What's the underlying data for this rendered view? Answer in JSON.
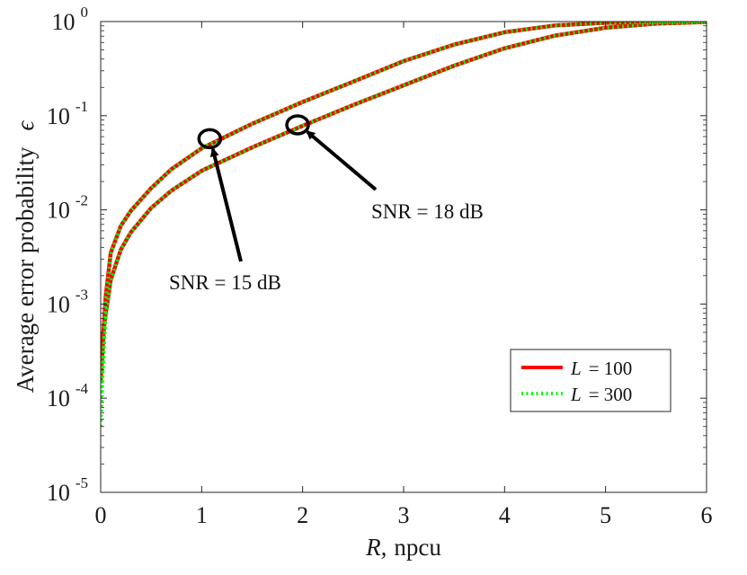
{
  "chart_data": {
    "type": "line",
    "xlabel_var": "R,",
    "xlabel_unit": "npcu",
    "ylabel": "Average error probability",
    "ylabel_symbol": "ϵ",
    "xlim": [
      0,
      6
    ],
    "ylim": [
      1e-05,
      1
    ],
    "yscale": "log",
    "x_ticks": [
      "0",
      "1",
      "2",
      "3",
      "4",
      "5",
      "6"
    ],
    "y_ticks": [
      {
        "base": "10",
        "exp": "0"
      },
      {
        "base": "10",
        "exp": "-1"
      },
      {
        "base": "10",
        "exp": "-2"
      },
      {
        "base": "10",
        "exp": "-3"
      },
      {
        "base": "10",
        "exp": "-4"
      },
      {
        "base": "10",
        "exp": "-5"
      }
    ],
    "grid": false,
    "legend_position": "bottom-right",
    "colors": {
      "L100": "#ff0000",
      "L300": "#00ff00",
      "annotation": "#000000"
    },
    "legend": [
      {
        "var": "L",
        "text": "= 100",
        "style": "solid"
      },
      {
        "var": "L",
        "text": "= 300",
        "style": "dotted"
      }
    ],
    "series": [
      {
        "group": "SNR = 15 dB",
        "legend_index": 0,
        "x": [
          0,
          0.05,
          0.1,
          0.2,
          0.3,
          0.5,
          0.7,
          1.0,
          1.5,
          2.0,
          2.5,
          3.0,
          3.5,
          4.0,
          4.5,
          5.0,
          5.5,
          6.0
        ],
        "y": [
          0.00015,
          0.0012,
          0.0035,
          0.0068,
          0.0098,
          0.017,
          0.027,
          0.045,
          0.082,
          0.14,
          0.23,
          0.38,
          0.57,
          0.77,
          0.91,
          0.97,
          0.99,
          1.0
        ]
      },
      {
        "group": "SNR = 15 dB",
        "legend_index": 1,
        "x": [
          0,
          0.05,
          0.1,
          0.2,
          0.3,
          0.5,
          0.7,
          1.0,
          1.5,
          2.0,
          2.5,
          3.0,
          3.5,
          4.0,
          4.5,
          5.0,
          5.5,
          6.0
        ],
        "y": [
          5e-05,
          0.0011,
          0.0034,
          0.0068,
          0.0098,
          0.017,
          0.027,
          0.045,
          0.082,
          0.14,
          0.23,
          0.38,
          0.57,
          0.77,
          0.91,
          0.97,
          0.99,
          1.0
        ]
      },
      {
        "group": "SNR = 18 dB",
        "legend_index": 0,
        "x": [
          0,
          0.05,
          0.1,
          0.2,
          0.3,
          0.5,
          0.7,
          1.0,
          1.5,
          2.0,
          2.5,
          3.0,
          3.5,
          4.0,
          4.5,
          5.0,
          5.5,
          6.0
        ],
        "y": [
          0.0003,
          0.0008,
          0.0018,
          0.0038,
          0.0058,
          0.0105,
          0.016,
          0.026,
          0.046,
          0.078,
          0.13,
          0.21,
          0.34,
          0.52,
          0.71,
          0.86,
          0.95,
          0.99
        ]
      },
      {
        "group": "SNR = 18 dB",
        "legend_index": 1,
        "x": [
          0,
          0.05,
          0.1,
          0.2,
          0.3,
          0.5,
          0.7,
          1.0,
          1.5,
          2.0,
          2.5,
          3.0,
          3.5,
          4.0,
          4.5,
          5.0,
          5.5,
          6.0
        ],
        "y": [
          0.0001,
          0.0007,
          0.0017,
          0.0038,
          0.0058,
          0.0105,
          0.016,
          0.026,
          0.046,
          0.078,
          0.13,
          0.21,
          0.34,
          0.52,
          0.71,
          0.86,
          0.95,
          0.99
        ]
      }
    ],
    "annotations": [
      {
        "text": "SNR = 15 dB",
        "circle_at": [
          1.08,
          0.057
        ],
        "arrow_from_label": true
      },
      {
        "text": "SNR = 18 dB",
        "circle_at": [
          1.95,
          0.08
        ],
        "arrow_from_label": true
      }
    ]
  }
}
